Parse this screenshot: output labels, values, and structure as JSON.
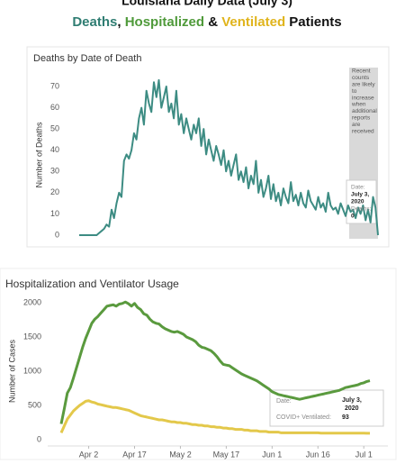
{
  "header": {
    "title": "Louisiana Daily Data (July 3)",
    "subtitle": [
      {
        "text": "Deaths",
        "color": "#2f7d72"
      },
      {
        "text": ", ",
        "color": "#111111"
      },
      {
        "text": "Hospitalized",
        "color": "#4f9a3a"
      },
      {
        "text": " & ",
        "color": "#111111"
      },
      {
        "text": "Ventilated",
        "color": "#e0b41c"
      },
      {
        "text": " Patients",
        "color": "#111111"
      }
    ]
  },
  "chart_data": [
    {
      "type": "line",
      "title": "Deaths by Date of Death",
      "ylabel": "Number of Deaths",
      "ylim": [
        0,
        70
      ],
      "yticks": [
        0,
        10,
        20,
        30,
        40,
        50,
        60,
        70
      ],
      "color": "#3d8c83",
      "values": [
        0,
        0,
        0,
        0,
        0,
        0,
        0,
        0,
        1,
        2,
        3,
        5,
        4,
        12,
        8,
        15,
        20,
        18,
        35,
        38,
        36,
        40,
        48,
        45,
        55,
        60,
        52,
        68,
        62,
        58,
        72,
        65,
        73,
        60,
        65,
        70,
        58,
        62,
        55,
        68,
        52,
        57,
        48,
        55,
        50,
        45,
        52,
        48,
        55,
        42,
        50,
        38,
        45,
        40,
        35,
        42,
        38,
        33,
        40,
        30,
        35,
        28,
        33,
        38,
        26,
        30,
        25,
        32,
        22,
        28,
        24,
        35,
        20,
        26,
        18,
        22,
        28,
        17,
        24,
        16,
        20,
        14,
        22,
        18,
        15,
        25,
        16,
        19,
        14,
        20,
        15,
        13,
        21,
        16,
        14,
        12,
        18,
        13,
        15,
        11,
        20,
        14,
        12,
        13,
        10,
        15,
        12,
        9,
        14,
        11,
        12,
        8,
        13,
        10,
        14,
        7,
        12,
        6,
        18,
        13,
        0
      ],
      "note": [
        "Recent",
        "counts",
        "are likely",
        "to",
        "increase",
        "when",
        "additional",
        "reports",
        "are",
        "received"
      ],
      "tooltip": [
        "Date:",
        "July 3,",
        "2020",
        "Deaths:",
        "0"
      ]
    },
    {
      "type": "line",
      "title": "Hospitalization and Ventilator Usage",
      "ylabel": "Number of Cases",
      "ylim": [
        0,
        2000
      ],
      "yticks": [
        0,
        500,
        1000,
        1500,
        2000
      ],
      "xlim": [
        0,
        101
      ],
      "xticks": [
        {
          "value": 9,
          "label": "Apr 2"
        },
        {
          "value": 24,
          "label": "Apr 17"
        },
        {
          "value": 39,
          "label": "May 2"
        },
        {
          "value": 54,
          "label": "May 17"
        },
        {
          "value": 69,
          "label": "Jun 1"
        },
        {
          "value": 84,
          "label": "Jun 16"
        },
        {
          "value": 99,
          "label": "Jul 1"
        }
      ],
      "series": [
        {
          "name": "Hospitalized",
          "color": "#5a9a3e",
          "values": [
            230,
            450,
            680,
            760,
            900,
            1050,
            1200,
            1350,
            1480,
            1590,
            1700,
            1760,
            1800,
            1850,
            1900,
            1950,
            1960,
            1970,
            1950,
            1980,
            1990,
            2010,
            1985,
            1950,
            1990,
            1930,
            1900,
            1840,
            1820,
            1760,
            1720,
            1700,
            1690,
            1650,
            1620,
            1600,
            1580,
            1570,
            1580,
            1560,
            1540,
            1500,
            1480,
            1460,
            1430,
            1380,
            1350,
            1340,
            1320,
            1300,
            1260,
            1210,
            1150,
            1100,
            1090,
            1080,
            1050,
            1020,
            990,
            960,
            940,
            920,
            900,
            880,
            860,
            830,
            800,
            770,
            740,
            700,
            680,
            660,
            650,
            640,
            630,
            620,
            610,
            600,
            590,
            600,
            610,
            620,
            630,
            640,
            650,
            660,
            670,
            680,
            690,
            700,
            710,
            720,
            740,
            760,
            770,
            780,
            790,
            800,
            820,
            830,
            850,
            860
          ]
        },
        {
          "name": "Ventilated",
          "color": "#e3c84a",
          "values": [
            100,
            200,
            300,
            360,
            420,
            460,
            500,
            530,
            560,
            570,
            550,
            540,
            520,
            510,
            500,
            490,
            480,
            470,
            470,
            460,
            450,
            440,
            430,
            410,
            390,
            370,
            350,
            340,
            330,
            320,
            310,
            300,
            290,
            290,
            280,
            270,
            260,
            260,
            250,
            250,
            240,
            240,
            230,
            220,
            220,
            210,
            210,
            200,
            200,
            190,
            190,
            180,
            180,
            170,
            170,
            160,
            160,
            150,
            150,
            150,
            140,
            140,
            130,
            130,
            130,
            120,
            120,
            120,
            110,
            110,
            110,
            110,
            100,
            100,
            100,
            100,
            100,
            100,
            100,
            100,
            100,
            100,
            100,
            100,
            100,
            95,
            95,
            95,
            95,
            95,
            95,
            95,
            95,
            95,
            95,
            95,
            95,
            95,
            95,
            95,
            93,
            93
          ]
        }
      ],
      "tooltip": {
        "date_label": "Date:",
        "date": [
          "July 3,",
          "2020"
        ],
        "label": "COVID+ Ventilated:",
        "value": 93
      }
    }
  ]
}
